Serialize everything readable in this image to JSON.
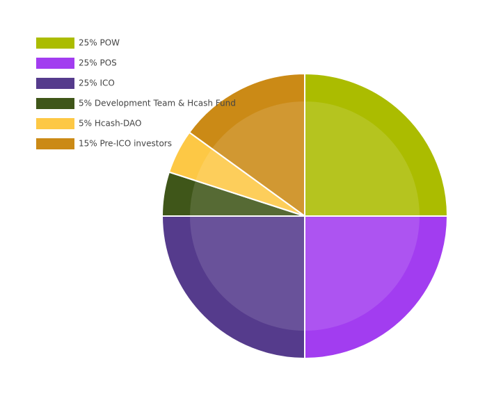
{
  "chart_data": {
    "type": "pie",
    "labels": [
      "25% POW",
      "25% POS",
      "25% ICO",
      "5% Development Team & Hcash Fund",
      "5% Hcash-DAO",
      "15% Pre-ICO investors"
    ],
    "values": [
      25,
      25,
      25,
      5,
      5,
      15
    ],
    "colors": [
      "#abbc00",
      "#a23df0",
      "#553b8c",
      "#3f5619",
      "#fdc845",
      "#cb8a16"
    ],
    "legend": "top-left"
  }
}
